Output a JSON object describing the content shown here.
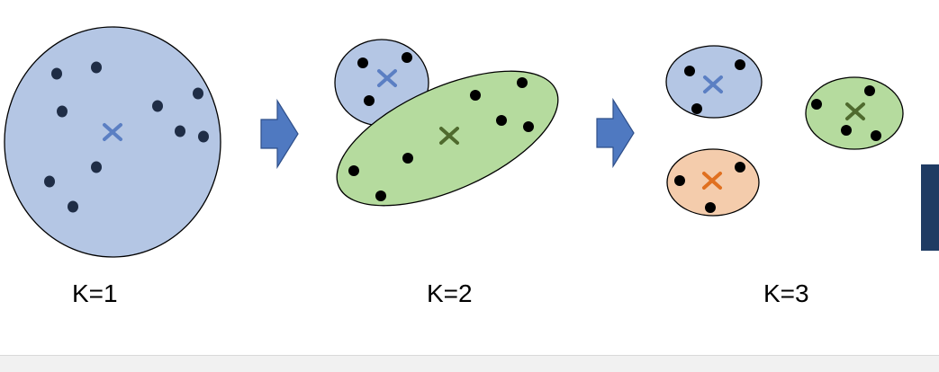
{
  "colors": {
    "blue_fill": "#b4c6e4",
    "green_fill": "#b5db9e",
    "orange_fill": "#f4ccac",
    "blue_marker": "#5b7fc3",
    "green_marker": "#4f6a2e",
    "orange_marker": "#e07020",
    "arrow_fill": "#4f79c1",
    "arrow_stroke": "#2f4f8a",
    "point_fill": "#000000",
    "outline": "#000000"
  },
  "icons": {
    "arrow": "right-arrow-icon",
    "centroid": "x-mark-icon"
  },
  "panels": [
    {
      "label": "K=1"
    },
    {
      "label": "K=2"
    },
    {
      "label": "K=3"
    }
  ]
}
